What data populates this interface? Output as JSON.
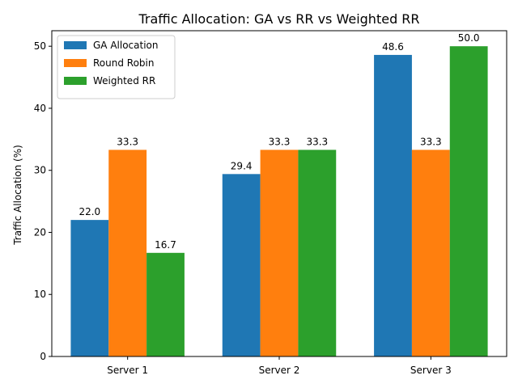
{
  "chart_data": {
    "type": "bar",
    "title": "Traffic Allocation: GA vs RR vs Weighted RR",
    "xlabel": "",
    "ylabel": "Traffic Allocation (%)",
    "categories": [
      "Server 1",
      "Server 2",
      "Server 3"
    ],
    "ylim": [
      0,
      52.5
    ],
    "yticks": [
      0,
      10,
      20,
      30,
      40,
      50
    ],
    "grid": false,
    "legend_position": "top-left",
    "series": [
      {
        "name": "GA Allocation",
        "color": "#1f77b4",
        "values": [
          22.0,
          29.4,
          48.6
        ],
        "labels": [
          "22.0",
          "29.4",
          "48.6"
        ]
      },
      {
        "name": "Round Robin",
        "color": "#ff7f0e",
        "values": [
          33.3,
          33.3,
          33.3
        ],
        "labels": [
          "33.3",
          "33.3",
          "33.3"
        ]
      },
      {
        "name": "Weighted RR",
        "color": "#2ca02c",
        "values": [
          16.7,
          33.3,
          50.0
        ],
        "labels": [
          "16.7",
          "33.3",
          "50.0"
        ]
      }
    ]
  }
}
